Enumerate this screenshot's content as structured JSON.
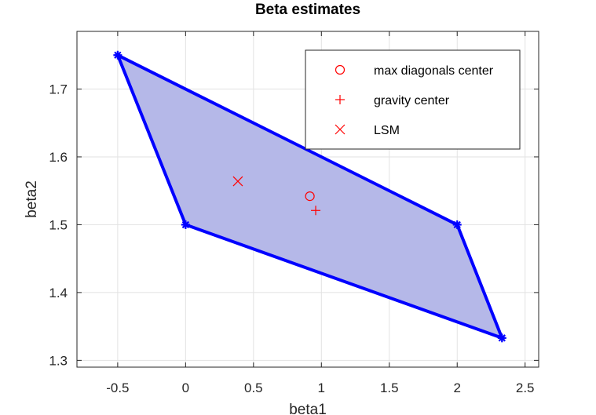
{
  "chart_data": {
    "type": "scatter",
    "title": "Beta estimates",
    "xlabel": "beta1",
    "ylabel": "beta2",
    "xlim": [
      -0.8,
      2.6
    ],
    "ylim": [
      1.29,
      1.785
    ],
    "x_ticks": [
      -0.5,
      0,
      0.5,
      1,
      1.5,
      2,
      2.5
    ],
    "x_tick_labels": [
      "-0.5",
      "0",
      "0.5",
      "1",
      "1.5",
      "2",
      "2.5"
    ],
    "y_ticks": [
      1.3,
      1.4,
      1.5,
      1.6,
      1.7
    ],
    "y_tick_labels": [
      "1.3",
      "1.4",
      "1.5",
      "1.6",
      "1.7"
    ],
    "grid": true,
    "legend_position": "top-right",
    "polygon": {
      "vertices": [
        [
          -0.5,
          1.75
        ],
        [
          2.0,
          1.5
        ],
        [
          2.33,
          1.333
        ],
        [
          0.0,
          1.5
        ]
      ],
      "edge_color": "#0000ff",
      "fill_color": "#b5b8e8"
    },
    "series": [
      {
        "name": "max diagonals center",
        "marker": "circle",
        "color": "#ff0000",
        "points": [
          [
            0.915,
            1.542
          ]
        ]
      },
      {
        "name": "gravity center",
        "marker": "plus",
        "color": "#ff0000",
        "points": [
          [
            0.958,
            1.521
          ]
        ]
      },
      {
        "name": "LSM",
        "marker": "x",
        "color": "#ff0000",
        "points": [
          [
            0.385,
            1.564
          ]
        ]
      }
    ]
  }
}
